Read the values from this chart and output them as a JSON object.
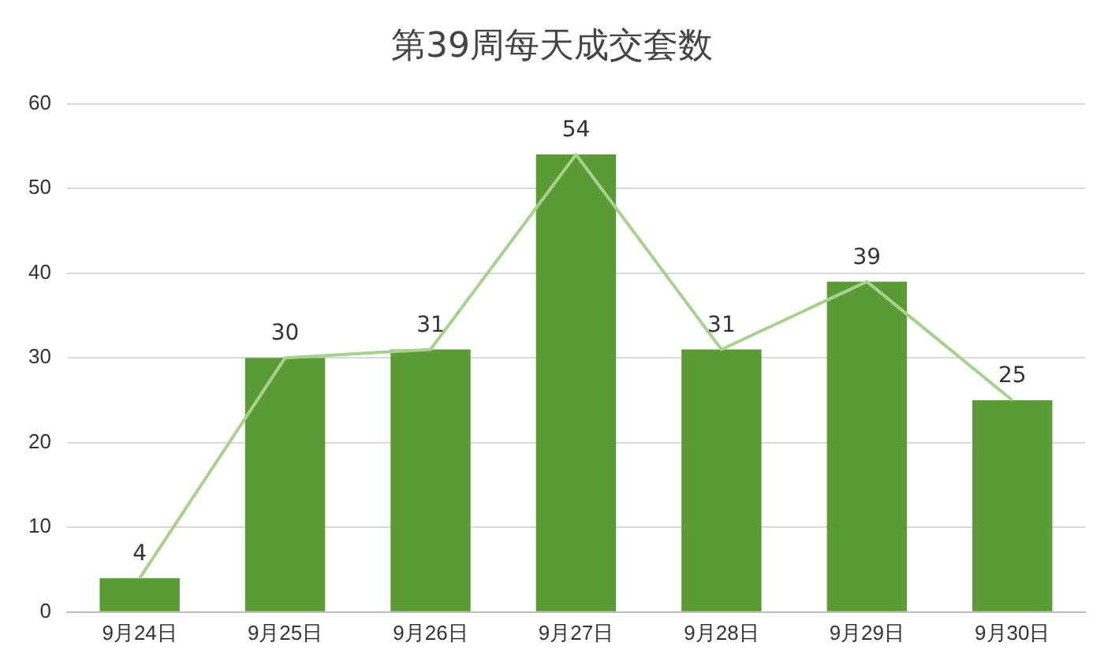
{
  "chart_data": {
    "type": "bar",
    "title": "第39周每天成交套数",
    "categories": [
      "9月24日",
      "9月25日",
      "9月26日",
      "9月27日",
      "9月28日",
      "9月29日",
      "9月30日"
    ],
    "series": [
      {
        "color": "#5b9b35",
        "values": [
          4,
          30,
          31,
          54,
          31,
          39,
          25
        ],
        "value_labels": [
          "4",
          "30",
          "31",
          "54",
          "31",
          "39",
          "25"
        ]
      },
      {
        "type": "line",
        "color": "#a9d18e",
        "values": [
          4,
          30,
          31,
          54,
          31,
          39,
          25
        ]
      }
    ],
    "ylim": [
      0,
      60
    ],
    "yticks": [
      0,
      10,
      20,
      30,
      40,
      50,
      60
    ],
    "grid": "y",
    "legend": false,
    "marker": "none",
    "line_style": "solid"
  }
}
